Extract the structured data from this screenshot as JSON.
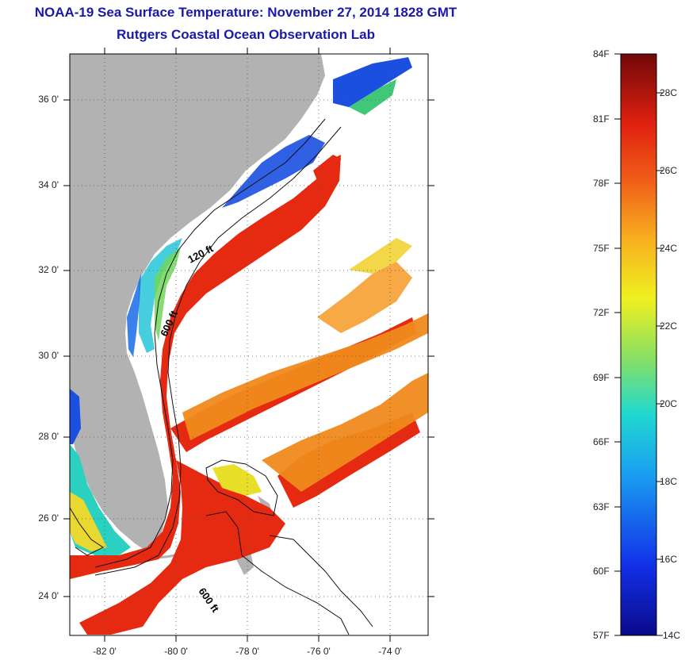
{
  "title": {
    "line1": "NOAA-19 Sea Surface Temperature:  November 27, 2014 1828 GMT",
    "line2": "Rutgers Coastal Ocean Observation Lab"
  },
  "map": {
    "lat_labels": [
      "36 0'",
      "34 0'",
      "32 0'",
      "30 0'",
      "28 0'",
      "26 0'",
      "24 0'"
    ],
    "lon_labels": [
      "-82 0'",
      "-80 0'",
      "-78 0'",
      "-76 0'",
      "-74 0'"
    ],
    "contour_labels": [
      "120 ft",
      "600 ft",
      "600 ft"
    ]
  },
  "colorbar": {
    "fahrenheit": [
      "84F",
      "81F",
      "78F",
      "75F",
      "72F",
      "69F",
      "66F",
      "63F",
      "60F",
      "57F"
    ],
    "celsius": [
      "28C",
      "26C",
      "24C",
      "22C",
      "20C",
      "18C",
      "16C",
      "14C"
    ]
  },
  "colors": {
    "land": "#b2b2b2",
    "gulf_stream": "#e62a12",
    "warm_orange": "#f08a1e",
    "cold_blue": "#1a4fe0",
    "title_blue": "#1a1aa8"
  }
}
